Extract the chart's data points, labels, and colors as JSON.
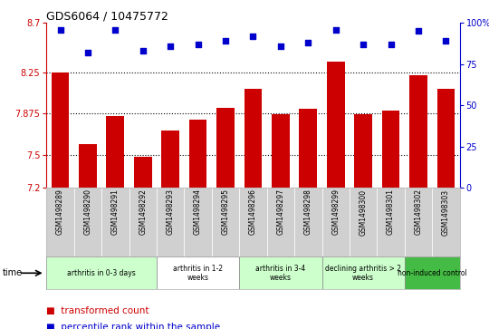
{
  "title": "GDS6064 / 10475772",
  "samples": [
    "GSM1498289",
    "GSM1498290",
    "GSM1498291",
    "GSM1498292",
    "GSM1498293",
    "GSM1498294",
    "GSM1498295",
    "GSM1498296",
    "GSM1498297",
    "GSM1498298",
    "GSM1498299",
    "GSM1498300",
    "GSM1498301",
    "GSM1498302",
    "GSM1498303"
  ],
  "bar_values": [
    8.25,
    7.6,
    7.85,
    7.48,
    7.72,
    7.82,
    7.93,
    8.1,
    7.87,
    7.92,
    8.35,
    7.87,
    7.9,
    8.22,
    8.1
  ],
  "dot_values": [
    96,
    82,
    96,
    83,
    86,
    87,
    89,
    92,
    86,
    88,
    96,
    87,
    87,
    95,
    89
  ],
  "ylim_left": [
    7.2,
    8.7
  ],
  "ylim_right": [
    0,
    100
  ],
  "yticks_left": [
    7.2,
    7.5,
    7.875,
    8.25,
    8.7
  ],
  "ytick_labels_left": [
    "7.2",
    "7.5",
    "7.875",
    "8.25",
    "8.7"
  ],
  "yticks_right": [
    0,
    25,
    50,
    75,
    100
  ],
  "ytick_labels_right": [
    "0",
    "25",
    "50",
    "75",
    "100%"
  ],
  "hlines": [
    7.5,
    7.875,
    8.25
  ],
  "bar_color": "#cc0000",
  "dot_color": "#0000cc",
  "bg_color": "#ffffff",
  "spine_color": "#aaaaaa",
  "groups": [
    {
      "label": "arthritis in 0-3 days",
      "start": 0,
      "end": 4,
      "color": "#ccffcc"
    },
    {
      "label": "arthritis in 1-2\nweeks",
      "start": 4,
      "end": 7,
      "color": "#ffffff"
    },
    {
      "label": "arthritis in 3-4\nweeks",
      "start": 7,
      "end": 10,
      "color": "#ccffcc"
    },
    {
      "label": "declining arthritis > 2\nweeks",
      "start": 10,
      "end": 13,
      "color": "#ccffcc"
    },
    {
      "label": "non-induced control",
      "start": 13,
      "end": 15,
      "color": "#44bb44"
    }
  ],
  "legend_bar_label": "transformed count",
  "legend_dot_label": "percentile rank within the sample",
  "time_label": "time"
}
